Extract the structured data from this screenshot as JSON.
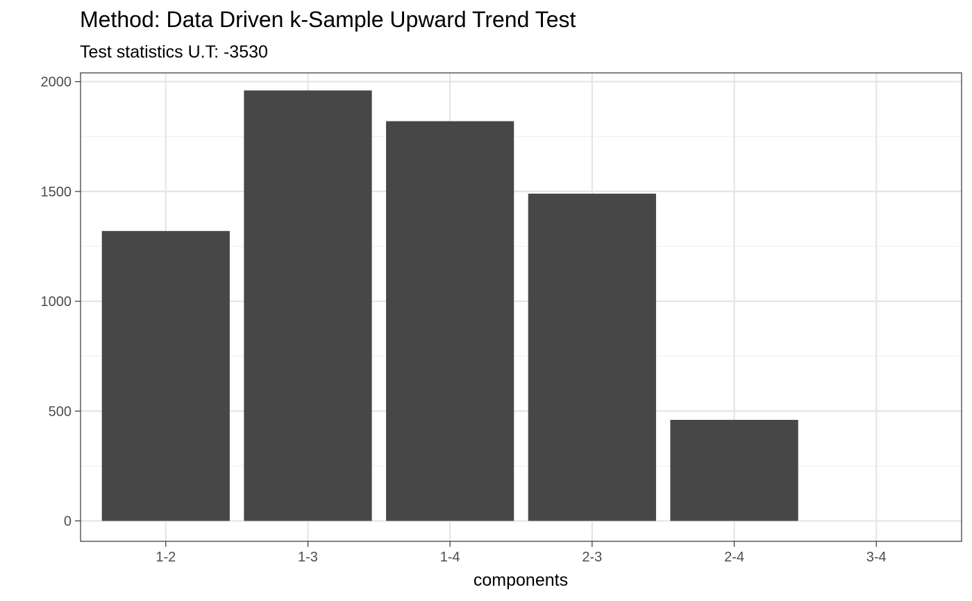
{
  "chart_data": {
    "type": "bar",
    "title": "Method: Data Driven k-Sample Upward Trend Test",
    "subtitle": "Test statistics U.T: -3530",
    "xlabel": "components",
    "ylabel": "",
    "categories": [
      "1-2",
      "1-3",
      "1-4",
      "2-3",
      "2-4",
      "3-4"
    ],
    "values": [
      1320,
      1960,
      1820,
      1490,
      460,
      0
    ],
    "ylim": [
      -93,
      2040
    ],
    "yticks": [
      0,
      500,
      1000,
      1500,
      2000
    ],
    "ytick_labels": [
      "0",
      "500",
      "1000",
      "1500",
      "2000"
    ],
    "grid": true,
    "legend": "none",
    "colors": {
      "bar": "#474747",
      "grid_major": "#e5e5e5",
      "grid_minor": "#f0f0f0",
      "panel_border": "#333333",
      "tick_text": "#4d4d4d"
    }
  }
}
